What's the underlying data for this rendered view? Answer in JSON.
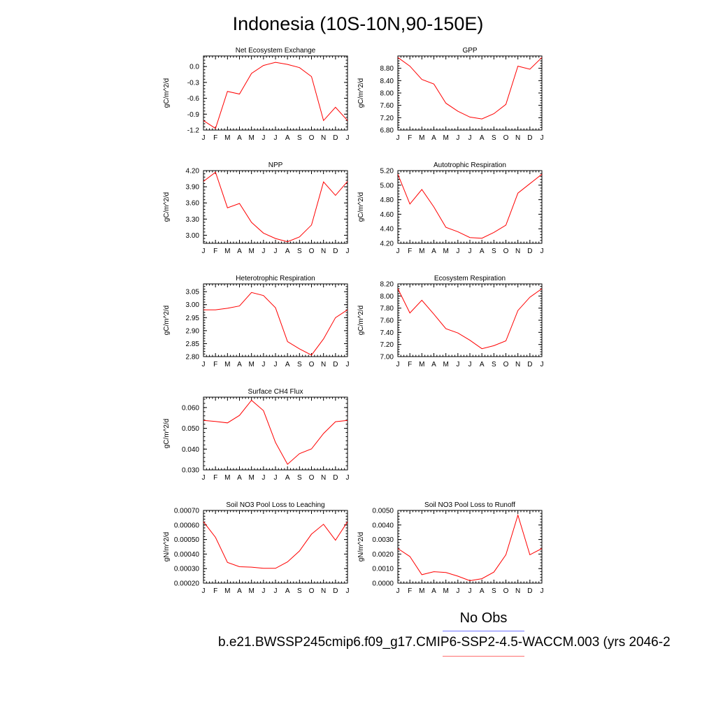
{
  "title": "Indonesia (10S-10N,90-150E)",
  "legend": {
    "obs_label": "No Obs",
    "case_label": "b.e21.BWSSP245cmip6.f09_g17.CMIP6-SSP2-4.5-WACCM.003 (yrs 2046-2",
    "obs_color": "#6f73ff",
    "case_color": "#ff6f6f"
  },
  "colors": {
    "line": "#ff0000",
    "axis": "#000000"
  },
  "chart_data": [
    {
      "type": "line",
      "title": "Net Ecosystem Exchange",
      "ylabel": "gC/m^2/d",
      "x": [
        "J",
        "F",
        "M",
        "A",
        "M",
        "J",
        "J",
        "A",
        "S",
        "O",
        "N",
        "D",
        "J"
      ],
      "ylim": [
        -1.2,
        0.2
      ],
      "yticks": [
        "0.0",
        "-0.3",
        "-0.6",
        "-0.9",
        "-1.2"
      ],
      "ytick_values": [
        0.0,
        -0.3,
        -0.6,
        -0.9,
        -1.2
      ],
      "series": [
        {
          "values": [
            -1.02,
            -1.17,
            -0.47,
            -0.52,
            -0.13,
            0.02,
            0.08,
            0.04,
            -0.02,
            -0.19,
            -1.02,
            -0.77,
            -1.02
          ]
        }
      ]
    },
    {
      "type": "line",
      "title": "GPP",
      "ylabel": "gC/m^2/d",
      "x": [
        "J",
        "F",
        "M",
        "A",
        "M",
        "J",
        "J",
        "A",
        "S",
        "O",
        "N",
        "D",
        "J"
      ],
      "ylim": [
        6.8,
        9.2
      ],
      "yticks": [
        "8.80",
        "8.40",
        "8.00",
        "7.60",
        "7.20",
        "6.80"
      ],
      "ytick_values": [
        8.8,
        8.4,
        8.0,
        7.6,
        7.2,
        6.8
      ],
      "series": [
        {
          "values": [
            9.15,
            8.87,
            8.44,
            8.29,
            7.67,
            7.41,
            7.22,
            7.16,
            7.33,
            7.63,
            8.87,
            8.77,
            9.15
          ]
        }
      ]
    },
    {
      "type": "line",
      "title": "NPP",
      "ylabel": "gC/m^2/d",
      "x": [
        "J",
        "F",
        "M",
        "A",
        "M",
        "J",
        "J",
        "A",
        "S",
        "O",
        "N",
        "D",
        "J"
      ],
      "ylim": [
        2.85,
        4.2
      ],
      "yticks": [
        "4.20",
        "3.90",
        "3.60",
        "3.30",
        "3.00"
      ],
      "ytick_values": [
        4.2,
        3.9,
        3.6,
        3.3,
        3.0
      ],
      "series": [
        {
          "values": [
            4.0,
            4.17,
            3.51,
            3.59,
            3.24,
            3.04,
            2.94,
            2.88,
            2.97,
            3.19,
            3.99,
            3.74,
            4.0
          ]
        }
      ]
    },
    {
      "type": "line",
      "title": "Autotrophic Respiration",
      "ylabel": "gC/m^2/d",
      "x": [
        "J",
        "F",
        "M",
        "A",
        "M",
        "J",
        "J",
        "A",
        "S",
        "O",
        "N",
        "D",
        "J"
      ],
      "ylim": [
        4.2,
        5.2
      ],
      "yticks": [
        "5.20",
        "5.00",
        "4.80",
        "4.60",
        "4.40",
        "4.20"
      ],
      "ytick_values": [
        5.2,
        5.0,
        4.8,
        4.6,
        4.4,
        4.2
      ],
      "series": [
        {
          "values": [
            5.15,
            4.74,
            4.94,
            4.7,
            4.42,
            4.36,
            4.28,
            4.27,
            4.35,
            4.45,
            4.89,
            5.02,
            5.15
          ]
        }
      ]
    },
    {
      "type": "line",
      "title": "Heterotrophic Respiration",
      "ylabel": "gC/m^2/d",
      "x": [
        "J",
        "F",
        "M",
        "A",
        "M",
        "J",
        "J",
        "A",
        "S",
        "O",
        "N",
        "D",
        "J"
      ],
      "ylim": [
        2.8,
        3.08
      ],
      "yticks": [
        "3.05",
        "3.00",
        "2.95",
        "2.90",
        "2.85",
        "2.80"
      ],
      "ytick_values": [
        3.05,
        3.0,
        2.95,
        2.9,
        2.85,
        2.8
      ],
      "series": [
        {
          "values": [
            2.98,
            2.98,
            2.986,
            2.995,
            3.047,
            3.035,
            2.988,
            2.858,
            2.83,
            2.806,
            2.868,
            2.95,
            2.98
          ]
        }
      ]
    },
    {
      "type": "line",
      "title": "Ecosystem Respiration",
      "ylabel": "gC/m^2/d",
      "x": [
        "J",
        "F",
        "M",
        "A",
        "M",
        "J",
        "J",
        "A",
        "S",
        "O",
        "N",
        "D",
        "J"
      ],
      "ylim": [
        7.0,
        8.2
      ],
      "yticks": [
        "8.20",
        "8.00",
        "7.80",
        "7.60",
        "7.40",
        "7.20",
        "7.00"
      ],
      "ytick_values": [
        8.2,
        8.0,
        7.8,
        7.6,
        7.4,
        7.2,
        7.0
      ],
      "series": [
        {
          "values": [
            8.12,
            7.72,
            7.93,
            7.7,
            7.46,
            7.39,
            7.27,
            7.13,
            7.18,
            7.26,
            7.76,
            7.98,
            8.12
          ]
        }
      ]
    },
    {
      "type": "line",
      "title": "Surface CH4 Flux",
      "ylabel": "gC/m^2/d",
      "x": [
        "J",
        "F",
        "M",
        "A",
        "M",
        "J",
        "J",
        "A",
        "S",
        "O",
        "N",
        "D",
        "J"
      ],
      "ylim": [
        0.03,
        0.065
      ],
      "yticks": [
        "0.060",
        "0.050",
        "0.040",
        "0.030"
      ],
      "ytick_values": [
        0.06,
        0.05,
        0.04,
        0.03
      ],
      "series": [
        {
          "values": [
            0.0538,
            0.0533,
            0.0526,
            0.0562,
            0.0635,
            0.0585,
            0.0432,
            0.0327,
            0.0378,
            0.0401,
            0.0475,
            0.0532,
            0.0538
          ]
        }
      ]
    },
    {
      "type": "line",
      "title": "Soil NO3 Pool Loss to Leaching",
      "ylabel": "gN/m^2/d",
      "x": [
        "J",
        "F",
        "M",
        "A",
        "M",
        "J",
        "J",
        "A",
        "S",
        "O",
        "N",
        "D",
        "J"
      ],
      "ylim": [
        0.0002,
        0.0007
      ],
      "yticks": [
        "0.00070",
        "0.00060",
        "0.00050",
        "0.00040",
        "0.00030",
        "0.00020"
      ],
      "ytick_values": [
        0.0007,
        0.0006,
        0.0005,
        0.0004,
        0.0003,
        0.0002
      ],
      "series": [
        {
          "values": [
            0.000622,
            0.000515,
            0.000343,
            0.000313,
            0.00031,
            0.000302,
            0.000302,
            0.000346,
            0.000421,
            0.000537,
            0.000605,
            0.000495,
            0.000622
          ]
        }
      ]
    },
    {
      "type": "line",
      "title": "Soil NO3 Pool Loss to Runoff",
      "ylabel": "gN/m^2/d",
      "x": [
        "J",
        "F",
        "M",
        "A",
        "M",
        "J",
        "J",
        "A",
        "S",
        "O",
        "N",
        "D",
        "J"
      ],
      "ylim": [
        0.0,
        0.005
      ],
      "yticks": [
        "0.0050",
        "0.0040",
        "0.0030",
        "0.0020",
        "0.0010",
        "0.0000"
      ],
      "ytick_values": [
        0.005,
        0.004,
        0.003,
        0.002,
        0.001,
        0.0
      ],
      "series": [
        {
          "values": [
            0.00238,
            0.00183,
            0.00058,
            0.00079,
            0.00073,
            0.00048,
            0.00017,
            0.00031,
            0.00076,
            0.00195,
            0.00468,
            0.00195,
            0.00238
          ]
        }
      ]
    }
  ]
}
